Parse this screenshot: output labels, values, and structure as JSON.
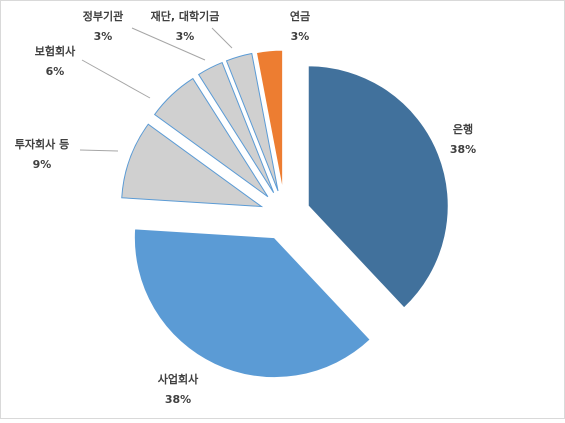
{
  "chart_data": {
    "type": "pie",
    "categories": [
      "은행",
      "사업회사",
      "투자회사 등",
      "보험회사",
      "정부기관",
      "재단, 대학기금",
      "연금"
    ],
    "values": [
      38,
      38,
      9,
      6,
      3,
      3,
      3
    ],
    "value_labels": [
      "38%",
      "38%",
      "9%",
      "6%",
      "3%",
      "3%",
      "3%"
    ],
    "colors": [
      "#41719c",
      "#5b9bd5",
      "#d0d0d0",
      "#d0d0d0",
      "#d0d0d0",
      "#d0d0d0",
      "#ed7d31"
    ]
  }
}
